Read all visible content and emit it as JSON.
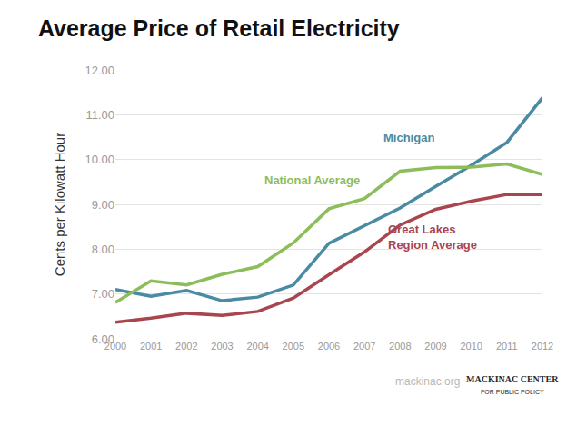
{
  "chart_data": {
    "type": "line",
    "title": "Average Price of Retail Electricity",
    "y_label": "Cents per Kilowatt Hour",
    "categories": [
      "2000",
      "2001",
      "2002",
      "2003",
      "2004",
      "2005",
      "2006",
      "2007",
      "2008",
      "2009",
      "2010",
      "2011",
      "2012"
    ],
    "series": [
      {
        "name": "Michigan",
        "color": "#4a8aa3",
        "values": [
          7.1,
          6.95,
          7.08,
          6.85,
          6.93,
          7.2,
          8.13,
          8.52,
          8.92,
          9.4,
          9.87,
          10.38,
          11.38
        ]
      },
      {
        "name": "National Average",
        "color": "#8dbd5a",
        "values": [
          6.81,
          7.29,
          7.2,
          7.44,
          7.61,
          8.14,
          8.9,
          9.13,
          9.74,
          9.82,
          9.83,
          9.9,
          9.67
        ]
      },
      {
        "name": "Great Lakes Region Average",
        "color": "#a8454e",
        "values": [
          6.37,
          6.46,
          6.57,
          6.52,
          6.61,
          6.91,
          7.43,
          7.94,
          8.54,
          8.89,
          9.07,
          9.22,
          9.22
        ]
      }
    ],
    "ylim": [
      6,
      12
    ],
    "yticks": [
      {
        "value": 6,
        "label": "6.00"
      },
      {
        "value": 7,
        "label": "7.00"
      },
      {
        "value": 8,
        "label": "8.00"
      },
      {
        "value": 9,
        "label": "9.00"
      },
      {
        "value": 10,
        "label": "10.00"
      },
      {
        "value": 11,
        "label": "11.00"
      },
      {
        "value": 12,
        "label": "12.00"
      }
    ],
    "grid": true,
    "annotations": [
      "mackinac.org",
      "MACKINAC CENTER",
      "FOR PUBLIC POLICY"
    ]
  }
}
